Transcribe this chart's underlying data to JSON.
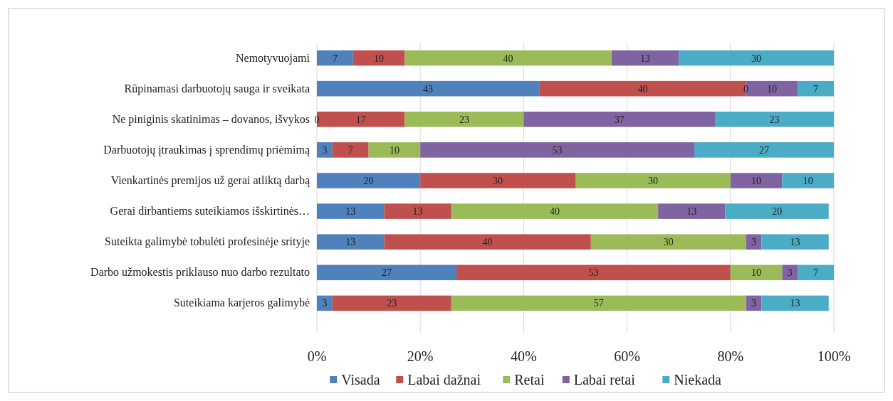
{
  "chart_data": {
    "type": "bar",
    "orientation": "horizontal",
    "stacked": true,
    "categories": [
      "Nemotyvuojami",
      "Rūpinamasi darbuotojų sauga ir sveikata",
      "Ne piniginis skatinimas – dovanos, išvykos",
      "Darbuotojų įtraukimas į sprendimų priėmimą",
      "Vienkartinės premijos už gerai atliktą darbą",
      "Gerai dirbantiems suteikiamos išskirtinės…",
      "Suteikta galimybė tobulėti profesinėje srityje",
      "Darbo užmokestis priklauso nuo darbo rezultato",
      "Suteikiama karjeros galimybė"
    ],
    "series": [
      {
        "name": "Visada",
        "color": "#4f81bd",
        "values": [
          7,
          43,
          0,
          3,
          20,
          13,
          13,
          27,
          3
        ]
      },
      {
        "name": "Labai dažnai",
        "color": "#c0504d",
        "values": [
          10,
          40,
          17,
          7,
          30,
          13,
          40,
          53,
          23
        ]
      },
      {
        "name": "Retai",
        "color": "#9bbb59",
        "values": [
          40,
          0,
          23,
          10,
          30,
          40,
          30,
          10,
          57
        ]
      },
      {
        "name": "Labai retai",
        "color": "#8064a2",
        "values": [
          13,
          10,
          37,
          53,
          10,
          13,
          3,
          3,
          3
        ]
      },
      {
        "name": "Niekada",
        "color": "#4bacc6",
        "values": [
          30,
          7,
          23,
          27,
          10,
          20,
          13,
          7,
          13
        ]
      }
    ],
    "xlim": [
      0,
      100
    ],
    "xticks": [
      {
        "value": 0,
        "label": "0%"
      },
      {
        "value": 20,
        "label": "20%"
      },
      {
        "value": 40,
        "label": "40%"
      },
      {
        "value": 60,
        "label": "60%"
      },
      {
        "value": 80,
        "label": "80%"
      },
      {
        "value": 100,
        "label": "100%"
      }
    ],
    "data_labels": true,
    "grid": "x",
    "legend": "bottom"
  }
}
